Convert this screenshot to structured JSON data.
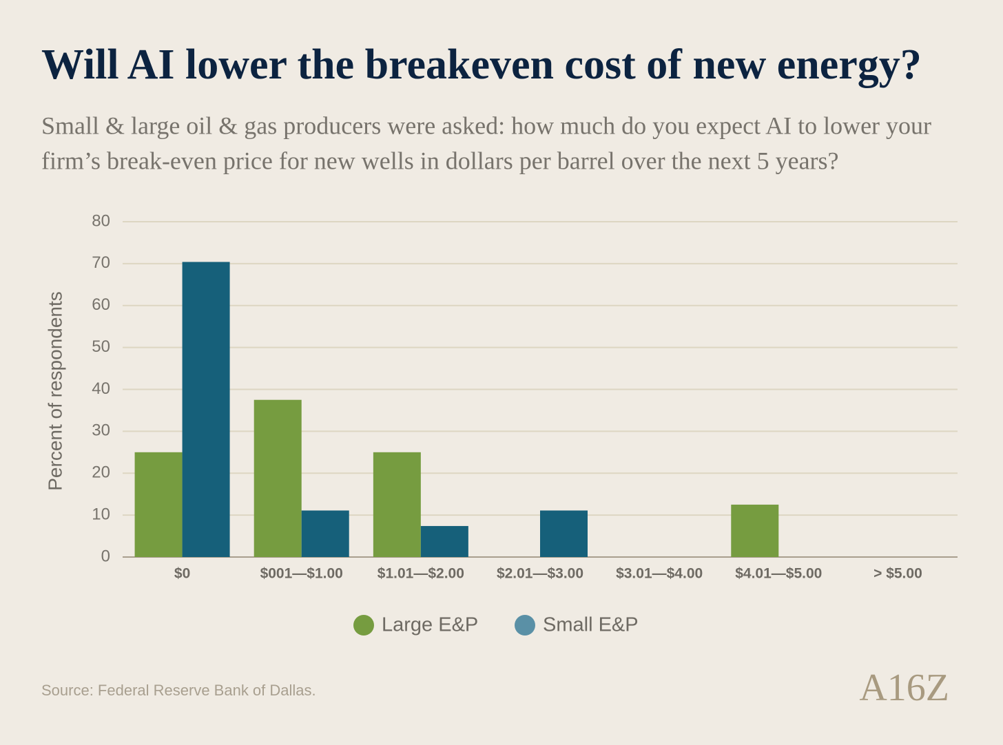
{
  "chart_data": {
    "type": "bar",
    "title": "Will AI lower the breakeven cost of new energy?",
    "subtitle": [
      "Small & large oil & gas producers were asked: how much do you expect AI to lower your",
      "firm’s break-even price for new wells in dollars per barrel over the next 5 years?"
    ],
    "y_label": "Percent of respondents",
    "categories": [
      "$0",
      "$001—$1.00",
      "$1.01—$2.00",
      "$2.01—$3.00",
      "$3.01—$4.00",
      "$4.01—$5.00",
      "> $5.00"
    ],
    "series": [
      {
        "name": "Large E&P",
        "color": "#769c40",
        "legend_color": "#769c40",
        "values": [
          25,
          37.5,
          25,
          0,
          0,
          12.5,
          0
        ]
      },
      {
        "name": "Small E&P",
        "color": "#16607a",
        "legend_color": "#5a90a6",
        "values": [
          70.4,
          11.1,
          7.4,
          11.1,
          0,
          0,
          0
        ]
      }
    ],
    "ylim": [
      0,
      80
    ],
    "yticks": [
      0,
      10,
      20,
      30,
      40,
      50,
      60,
      70,
      80
    ],
    "grid": true,
    "source": "Source: Federal Reserve Bank of Dallas.",
    "logo": "A16Z"
  }
}
